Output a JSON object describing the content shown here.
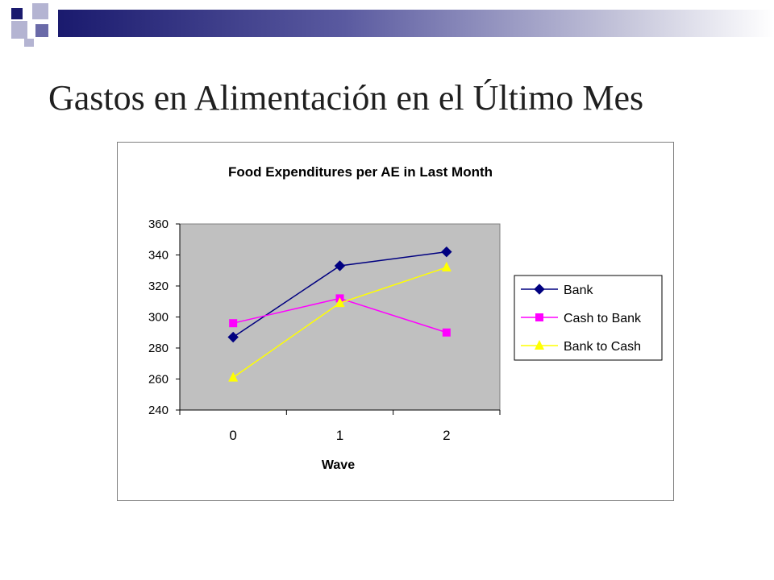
{
  "slide": {
    "title": "Gastos en Alimentación en el Último Mes"
  },
  "colors": {
    "deco_dark": "#1a1a6e",
    "deco_mid": "#6a6aa8",
    "deco_light": "#b4b4d2",
    "plot_bg": "#c0c0c0",
    "bank": "#000080",
    "cash_to_bank": "#ff00ff",
    "bank_to_cash": "#ffff00"
  },
  "chart_data": {
    "type": "line",
    "title": "Food Expenditures per AE in Last Month",
    "xlabel": "Wave",
    "ylabel": "",
    "categories": [
      "0",
      "1",
      "2"
    ],
    "ylim": [
      240,
      360
    ],
    "yticks": [
      "240",
      "260",
      "280",
      "300",
      "320",
      "340",
      "360"
    ],
    "grid": false,
    "legend_position": "right",
    "series": [
      {
        "name": "Bank",
        "values": [
          287,
          333,
          342
        ],
        "color": "#000080",
        "marker": "diamond"
      },
      {
        "name": "Cash to Bank",
        "values": [
          296,
          312,
          290
        ],
        "color": "#ff00ff",
        "marker": "square"
      },
      {
        "name": "Bank to Cash",
        "values": [
          261,
          309,
          332
        ],
        "color": "#ffff00",
        "marker": "triangle"
      }
    ]
  }
}
